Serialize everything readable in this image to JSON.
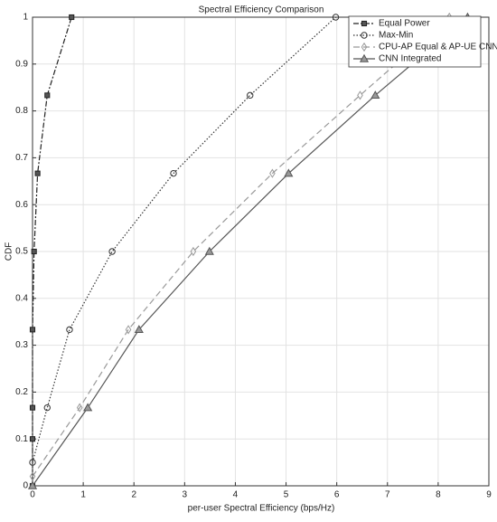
{
  "chart_data": {
    "type": "line",
    "title": "Spectral Efficiency Comparison",
    "xlabel": "per-user Spectral Efficiency (bps/Hz)",
    "ylabel": "CDF",
    "xlim": [
      0,
      9
    ],
    "xticks": [
      0,
      1,
      2,
      3,
      4,
      5,
      6,
      7,
      8,
      9
    ],
    "ylim": [
      0,
      1
    ],
    "yticks": [
      0,
      0.1,
      0.2,
      0.3,
      0.4,
      0.5,
      0.6,
      0.7,
      0.8,
      0.9,
      1
    ],
    "grid": true,
    "legend": "top-right",
    "series": [
      {
        "name": "Equal Power",
        "color": "#222222",
        "dash": "6 2 2 2",
        "marker": "square",
        "x": [
          0,
          0,
          0,
          0,
          0.03,
          0.1,
          0.29,
          0.77
        ],
        "values": [
          0,
          0.1,
          0.1667,
          0.3333,
          0.5,
          0.6667,
          0.8333,
          1
        ]
      },
      {
        "name": "Max-Min",
        "color": "#333333",
        "dash": "1.5 2",
        "marker": "circle",
        "x": [
          0,
          0.29,
          0.73,
          1.57,
          2.78,
          4.29,
          5.98
        ],
        "values": [
          0.05,
          0.1667,
          0.3333,
          0.5,
          0.6667,
          0.8333,
          1
        ]
      },
      {
        "name": "CPU-AP Equal & AP-UE CNN",
        "color": "#999999",
        "dash": "7 4",
        "marker": "diamond",
        "x": [
          0,
          0.93,
          1.89,
          3.17,
          4.73,
          6.46,
          8.22
        ],
        "values": [
          0.02,
          0.1667,
          0.3333,
          0.5,
          0.6667,
          0.8333,
          1
        ]
      },
      {
        "name": "CNN Integrated",
        "color": "#555555",
        "dash": "",
        "marker": "triangle",
        "x": [
          0,
          1.09,
          2.1,
          3.49,
          5.05,
          6.76,
          8.58
        ],
        "values": [
          0,
          0.1667,
          0.3333,
          0.5,
          0.6667,
          0.8333,
          1
        ]
      }
    ]
  }
}
